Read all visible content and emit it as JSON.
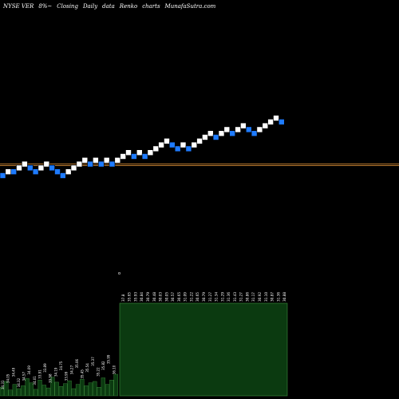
{
  "header": {
    "ticker": "NYSE VER",
    "change": "8%~",
    "closing": "Closing",
    "period": "Daily",
    "data_label": "data",
    "chart_kind": "Renko",
    "charts_word": "charts",
    "site": "MunafaSutra.com"
  },
  "colors": {
    "background": "#000000",
    "up_brick": "#ffffff",
    "down_brick": "#1e7bff",
    "level_line": "#b8782e",
    "volume_fill": "#0b3a10",
    "volume_edge": "#3f8f3f",
    "text": "#ffffff"
  },
  "chart_data": {
    "type": "renko",
    "bricks": [
      {
        "dir": "down",
        "level": 0
      },
      {
        "dir": "up",
        "level": 1
      },
      {
        "dir": "down",
        "level": 1
      },
      {
        "dir": "up",
        "level": 2
      },
      {
        "dir": "up",
        "level": 3
      },
      {
        "dir": "down",
        "level": 2
      },
      {
        "dir": "down",
        "level": 1
      },
      {
        "dir": "up",
        "level": 2
      },
      {
        "dir": "up",
        "level": 3
      },
      {
        "dir": "down",
        "level": 2
      },
      {
        "dir": "down",
        "level": 1
      },
      {
        "dir": "down",
        "level": 0
      },
      {
        "dir": "up",
        "level": 1
      },
      {
        "dir": "up",
        "level": 2
      },
      {
        "dir": "up",
        "level": 3
      },
      {
        "dir": "up",
        "level": 4
      },
      {
        "dir": "down",
        "level": 3
      },
      {
        "dir": "up",
        "level": 4
      },
      {
        "dir": "down",
        "level": 3
      },
      {
        "dir": "up",
        "level": 4
      },
      {
        "dir": "down",
        "level": 3
      },
      {
        "dir": "up",
        "level": 4
      },
      {
        "dir": "up",
        "level": 5
      },
      {
        "dir": "up",
        "level": 6
      },
      {
        "dir": "down",
        "level": 5
      },
      {
        "dir": "up",
        "level": 6
      },
      {
        "dir": "down",
        "level": 5
      },
      {
        "dir": "up",
        "level": 6
      },
      {
        "dir": "up",
        "level": 7
      },
      {
        "dir": "up",
        "level": 8
      },
      {
        "dir": "up",
        "level": 9
      },
      {
        "dir": "down",
        "level": 8
      },
      {
        "dir": "down",
        "level": 7
      },
      {
        "dir": "up",
        "level": 8
      },
      {
        "dir": "down",
        "level": 7
      },
      {
        "dir": "up",
        "level": 8
      },
      {
        "dir": "up",
        "level": 9
      },
      {
        "dir": "up",
        "level": 10
      },
      {
        "dir": "up",
        "level": 11
      },
      {
        "dir": "down",
        "level": 10
      },
      {
        "dir": "up",
        "level": 11
      },
      {
        "dir": "up",
        "level": 12
      },
      {
        "dir": "down",
        "level": 11
      },
      {
        "dir": "up",
        "level": 12
      },
      {
        "dir": "up",
        "level": 13
      },
      {
        "dir": "down",
        "level": 12
      },
      {
        "dir": "down",
        "level": 11
      },
      {
        "dir": "up",
        "level": 12
      },
      {
        "dir": "up",
        "level": 13
      },
      {
        "dir": "up",
        "level": 14
      },
      {
        "dir": "up",
        "level": 15
      },
      {
        "dir": "down",
        "level": 14
      }
    ],
    "reference_lines": [
      3.2,
      2.7
    ],
    "volume_small": [
      12,
      20,
      8,
      16,
      10,
      14,
      24,
      18,
      9,
      22,
      15,
      11,
      26,
      19,
      13,
      17,
      21,
      10,
      16,
      23,
      14,
      18,
      20,
      12,
      25,
      16,
      22,
      30
    ],
    "volume_block": 100,
    "volume_block_labels": [
      "37.8",
      "35.65",
      "35.93",
      "30.84",
      "30.79",
      "30.48",
      "30.03",
      "30.05",
      "30.57",
      "30.65",
      "31.09",
      "31.22",
      "30.65",
      "30.79",
      "31.27",
      "31.34",
      "31.29",
      "31.36",
      "31.43",
      "31.27",
      "30.86",
      "31.17",
      "30.92",
      "31.10",
      "30.87",
      "31.36",
      "30.88"
    ],
    "volume_small_labels": [
      "34.31",
      "34.05",
      "34.49",
      "34.32",
      "34.57",
      "34.09",
      "34.01",
      "33.91",
      "33.89",
      "33.58",
      "34.19",
      "34.75",
      "33.99",
      "34.27",
      "35.06",
      "35.45",
      "35.54",
      "35.37",
      "35.22",
      "35.82",
      "35.99",
      "36.10"
    ],
    "marker_label": "o"
  }
}
